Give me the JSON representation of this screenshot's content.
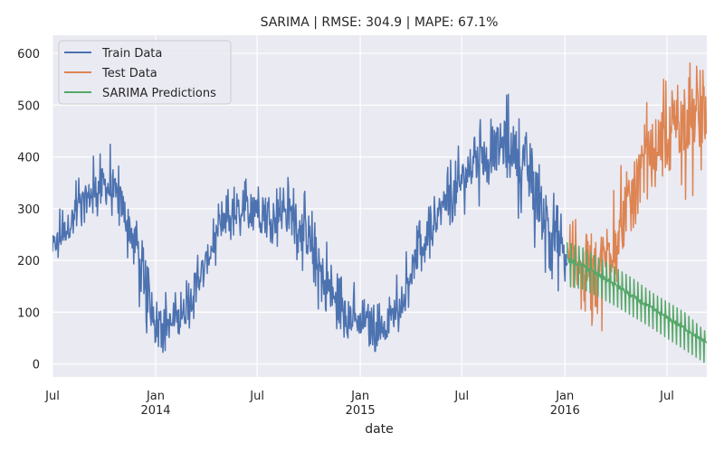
{
  "chart_data": {
    "type": "line",
    "title": "SARIMA | RMSE: 304.9 | MAPE: 67.1%",
    "xlabel": "date",
    "ylabel": "",
    "grid": true,
    "legend_position": "top-left",
    "ylim": [
      -25,
      635
    ],
    "xlim": [
      "2013-07-01",
      "2016-09-10"
    ],
    "yticks": [
      0,
      100,
      200,
      300,
      400,
      500,
      600
    ],
    "xticks": [
      {
        "date": "2013-07-01",
        "label": "Jul",
        "year": ""
      },
      {
        "date": "2014-01-01",
        "label": "Jan",
        "year": "2014"
      },
      {
        "date": "2014-07-01",
        "label": "Jul",
        "year": ""
      },
      {
        "date": "2015-01-01",
        "label": "Jan",
        "year": "2015"
      },
      {
        "date": "2015-07-01",
        "label": "Jul",
        "year": ""
      },
      {
        "date": "2016-01-01",
        "label": "Jan",
        "year": "2016"
      },
      {
        "date": "2016-07-01",
        "label": "Jul",
        "year": ""
      }
    ],
    "series": [
      {
        "name": "Train Data",
        "color": "#4c72b0",
        "x": [
          "2013-07-01",
          "2013-07-15",
          "2013-08-01",
          "2013-08-15",
          "2013-09-01",
          "2013-09-15",
          "2013-10-01",
          "2013-10-15",
          "2013-11-01",
          "2013-11-15",
          "2013-12-01",
          "2013-12-15",
          "2014-01-01",
          "2014-01-15",
          "2014-02-01",
          "2014-02-15",
          "2014-03-01",
          "2014-03-15",
          "2014-04-01",
          "2014-04-15",
          "2014-05-01",
          "2014-05-15",
          "2014-06-01",
          "2014-06-15",
          "2014-07-01",
          "2014-07-15",
          "2014-08-01",
          "2014-08-15",
          "2014-09-01",
          "2014-09-15",
          "2014-10-01",
          "2014-10-15",
          "2014-11-01",
          "2014-11-15",
          "2014-12-01",
          "2014-12-15",
          "2015-01-01",
          "2015-01-15",
          "2015-02-01",
          "2015-02-15",
          "2015-03-01",
          "2015-03-15",
          "2015-04-01",
          "2015-04-15",
          "2015-05-01",
          "2015-05-15",
          "2015-06-01",
          "2015-06-15",
          "2015-07-01",
          "2015-07-15",
          "2015-08-01",
          "2015-08-15",
          "2015-09-01",
          "2015-09-15",
          "2015-10-01",
          "2015-10-15",
          "2015-11-01",
          "2015-11-15",
          "2015-12-01",
          "2015-12-15",
          "2016-01-01",
          "2016-01-05"
        ],
        "values": [
          225,
          245,
          270,
          305,
          320,
          335,
          345,
          335,
          310,
          265,
          220,
          140,
          95,
          80,
          75,
          90,
          115,
          160,
          195,
          235,
          265,
          285,
          295,
          305,
          310,
          300,
          295,
          290,
          285,
          270,
          240,
          195,
          160,
          125,
          105,
          90,
          80,
          72,
          68,
          75,
          95,
          130,
          175,
          215,
          250,
          285,
          310,
          330,
          355,
          375,
          395,
          405,
          415,
          425,
          420,
          390,
          355,
          320,
          280,
          240,
          210,
          205
        ],
        "low": [
          185,
          200,
          230,
          255,
          270,
          280,
          290,
          275,
          235,
          180,
          110,
          55,
          35,
          20,
          15,
          25,
          55,
          100,
          145,
          175,
          210,
          225,
          245,
          250,
          255,
          235,
          230,
          220,
          210,
          190,
          155,
          110,
          80,
          60,
          50,
          45,
          35,
          30,
          20,
          25,
          45,
          70,
          115,
          150,
          190,
          220,
          250,
          265,
          285,
          295,
          305,
          310,
          320,
          330,
          320,
          260,
          220,
          190,
          160,
          140,
          130,
          160
        ],
        "high": [
          280,
          305,
          340,
          375,
          390,
          420,
          455,
          420,
          380,
          330,
          275,
          215,
          180,
          150,
          130,
          160,
          185,
          230,
          265,
          290,
          330,
          345,
          355,
          365,
          430,
          370,
          365,
          360,
          375,
          355,
          320,
          280,
          245,
          200,
          180,
          170,
          140,
          120,
          120,
          145,
          165,
          200,
          240,
          280,
          320,
          360,
          390,
          410,
          440,
          450,
          475,
          490,
          505,
          540,
          505,
          470,
          440,
          410,
          375,
          320,
          280,
          285
        ]
      },
      {
        "name": "Test Data",
        "color": "#dd8452",
        "x": [
          "2016-01-05",
          "2016-01-20",
          "2016-02-05",
          "2016-02-20",
          "2016-03-05",
          "2016-03-20",
          "2016-04-05",
          "2016-04-20",
          "2016-05-05",
          "2016-05-20",
          "2016-06-05",
          "2016-06-20",
          "2016-07-05",
          "2016-07-20",
          "2016-08-05",
          "2016-08-20",
          "2016-09-05",
          "2016-09-10"
        ],
        "values": [
          205,
          200,
          195,
          185,
          190,
          220,
          260,
          300,
          345,
          385,
          420,
          440,
          450,
          465,
          470,
          475,
          480,
          470
        ],
        "low": [
          150,
          125,
          85,
          60,
          45,
          120,
          160,
          195,
          250,
          310,
          330,
          360,
          330,
          300,
          320,
          320,
          300,
          455
        ],
        "high": [
          270,
          290,
          290,
          260,
          300,
          420,
          400,
          380,
          470,
          505,
          540,
          550,
          560,
          575,
          580,
          590,
          590,
          520
        ]
      },
      {
        "name": "SARIMA Predictions",
        "color": "#55a868",
        "x": [
          "2016-01-05",
          "2016-02-01",
          "2016-03-01",
          "2016-04-01",
          "2016-05-01",
          "2016-06-01",
          "2016-07-01",
          "2016-08-01",
          "2016-09-10"
        ],
        "values": [
          200,
          188,
          170,
          150,
          128,
          108,
          88,
          68,
          40
        ],
        "low": [
          150,
          145,
          130,
          112,
          92,
          72,
          50,
          28,
          0
        ],
        "high": [
          235,
          225,
          205,
          185,
          165,
          140,
          120,
          100,
          60
        ]
      }
    ]
  }
}
